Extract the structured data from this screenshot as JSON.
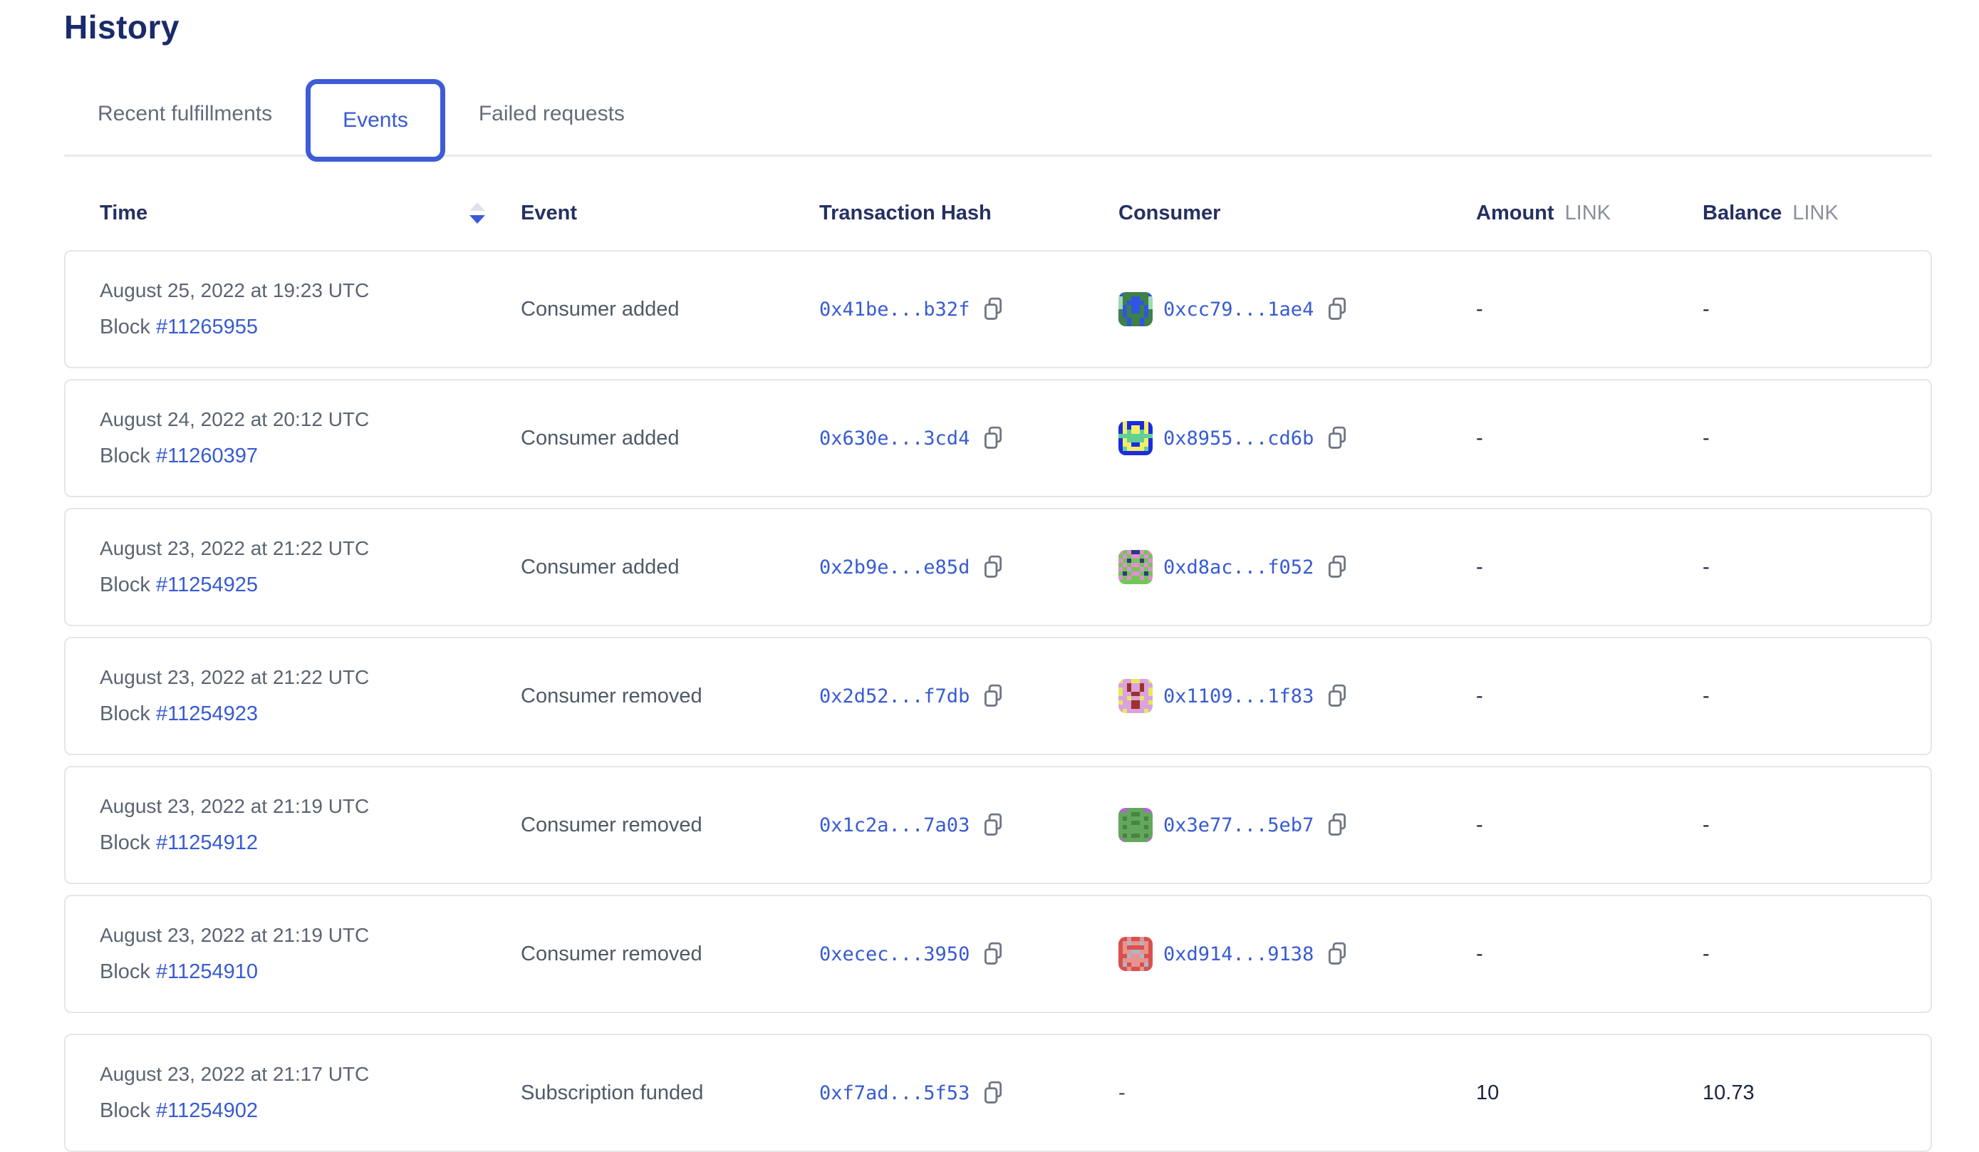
{
  "page": {
    "title": "History"
  },
  "tabs": [
    {
      "label": "Recent fulfillments",
      "active": false
    },
    {
      "label": "Events",
      "active": true
    },
    {
      "label": "Failed requests",
      "active": false
    }
  ],
  "colors": {
    "accent_blue": "#375BD2",
    "active_tab_border": "#3d5cd6",
    "heading_navy": "#1a2b6b",
    "header_label": "#253061",
    "muted_gray": "#8a909c",
    "card_border": "#e4e6e9",
    "sort_arrow_up": "#dfe3e9",
    "sort_arrow_down": "#3b5bdb",
    "copy_icon_gray": "#6f7683"
  },
  "table": {
    "headers": {
      "time": "Time",
      "event": "Event",
      "tx": "Transaction Hash",
      "consumer": "Consumer",
      "amount": "Amount",
      "balance": "Balance",
      "unit": "LINK"
    },
    "block_label": "Block",
    "rows": [
      {
        "time": "August 25, 2022 at 19:23 UTC",
        "block": "#11265955",
        "event": "Consumer added",
        "tx_hash": "0x41be...b32f",
        "consumer": "0xcc79...1ae4",
        "amount": "-",
        "balance": "-",
        "icon": {
          "colors": [
            "#3e8048",
            "#2f55e2",
            "#9fd9b4"
          ],
          "grid": [
            "10000001",
            "20011002",
            "20111102",
            "21011012",
            "01011010",
            "01000010",
            "00100100",
            "00100100"
          ]
        }
      },
      {
        "time": "August 24, 2022 at 20:12 UTC",
        "block": "#11260397",
        "event": "Consumer added",
        "tx_hash": "0x630e...3cd4",
        "consumer": "0x8955...cd6b",
        "amount": "-",
        "balance": "-",
        "icon": {
          "colors": [
            "#1d2be0",
            "#f2ee67",
            "#5fd096"
          ],
          "grid": [
            "01000010",
            "01011010",
            "01211210",
            "22222222",
            "01222210",
            "01100110",
            "02111120",
            "00000000"
          ]
        }
      },
      {
        "time": "August 23, 2022 at 21:22 UTC",
        "block": "#11254925",
        "event": "Consumer added",
        "tx_hash": "0x2b9e...e85d",
        "consumer": "0xd8ac...f052",
        "amount": "-",
        "balance": "-",
        "icon": {
          "colors": [
            "#74c654",
            "#e18ed4",
            "#2b3a85"
          ],
          "grid": [
            "10122101",
            "01011010",
            "10200201",
            "01011010",
            "10100101",
            "02011020",
            "10100101",
            "00000000"
          ]
        }
      },
      {
        "time": "August 23, 2022 at 21:22 UTC",
        "block": "#11254923",
        "event": "Consumer removed",
        "tx_hash": "0x2d52...f7db",
        "consumer": "0x1109...1f83",
        "amount": "-",
        "balance": "-",
        "icon": {
          "colors": [
            "#d9a3de",
            "#e9e75d",
            "#9e3128"
          ],
          "grid": [
            "10011001",
            "00200200",
            "10200201",
            "10022001",
            "00100100",
            "10022001",
            "00022000",
            "01000010"
          ]
        }
      },
      {
        "time": "August 23, 2022 at 21:19 UTC",
        "block": "#11254912",
        "event": "Consumer removed",
        "tx_hash": "0x1c2a...7a03",
        "consumer": "0x3e77...5eb7",
        "amount": "-",
        "balance": "-",
        "icon": {
          "colors": [
            "#63a75e",
            "#b95fd9",
            "#49843f"
          ],
          "grid": [
            "11000011",
            "00022000",
            "02000020",
            "00022000",
            "02000020",
            "00000000",
            "02022020",
            "10000001"
          ]
        }
      },
      {
        "time": "August 23, 2022 at 21:19 UTC",
        "block": "#11254910",
        "event": "Consumer removed",
        "tx_hash": "0xecec...3950",
        "consumer": "0xd914...9138",
        "amount": "-",
        "balance": "-",
        "icon": {
          "colors": [
            "#d8514d",
            "#e9928e",
            "#aab6c8"
          ],
          "grid": [
            "00100100",
            "01211210",
            "01000010",
            "01122110",
            "00211200",
            "01111110",
            "02011020",
            "00100100"
          ]
        }
      },
      {
        "time": "August 23, 2022 at 21:17 UTC",
        "block": "#11254902",
        "event": "Subscription funded",
        "tx_hash": "0xf7ad...5f53",
        "consumer": "-",
        "amount": "10",
        "balance": "10.73",
        "icon": null
      }
    ]
  }
}
